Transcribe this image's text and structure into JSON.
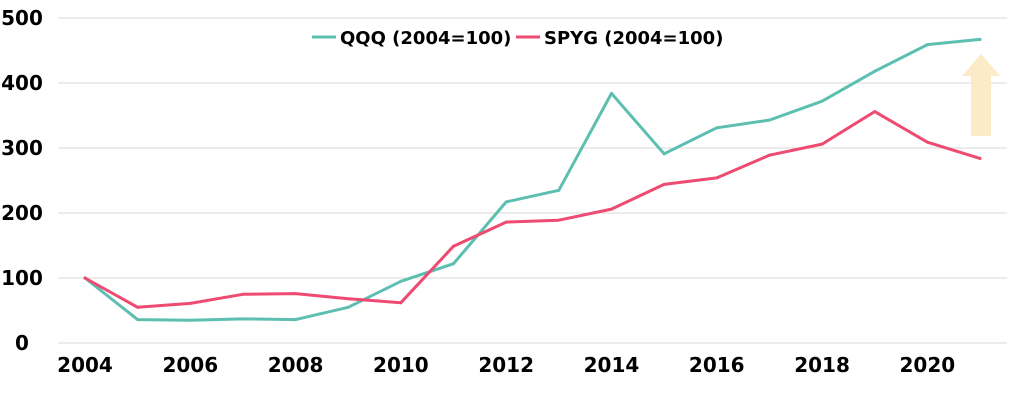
{
  "chart_data": {
    "type": "line",
    "title": "",
    "xlabel": "",
    "ylabel": "",
    "x": [
      2004,
      2005,
      2006,
      2007,
      2008,
      2009,
      2010,
      2011,
      2012,
      2013,
      2014,
      2015,
      2016,
      2017,
      2018,
      2019,
      2020,
      2021
    ],
    "x_ticks": [
      "2004",
      "2006",
      "2008",
      "2010",
      "2012",
      "2014",
      "2016",
      "2018",
      "2020"
    ],
    "y_ticks": [
      "0",
      "100",
      "200",
      "300",
      "400",
      "500"
    ],
    "ylim": [
      0,
      500
    ],
    "xlim": [
      2004,
      2021
    ],
    "grid": "horizontal",
    "legend_position": "top-center",
    "series": [
      {
        "name": "QQQ (2004=100)",
        "color": "#5cbfaf",
        "values": [
          100,
          36,
          35,
          37,
          36,
          55,
          95,
          122,
          217,
          235,
          384,
          291,
          331,
          343,
          372,
          418,
          459,
          467
        ]
      },
      {
        "name": "SPYG (2004=100)",
        "color": "#ee4a72",
        "values": [
          100,
          55,
          61,
          75,
          76,
          68,
          62,
          149,
          186,
          189,
          206,
          244,
          254,
          289,
          306,
          356,
          309,
          284
        ]
      }
    ],
    "annotation": {
      "shape": "up-arrow",
      "color": "#fdebc8"
    }
  }
}
